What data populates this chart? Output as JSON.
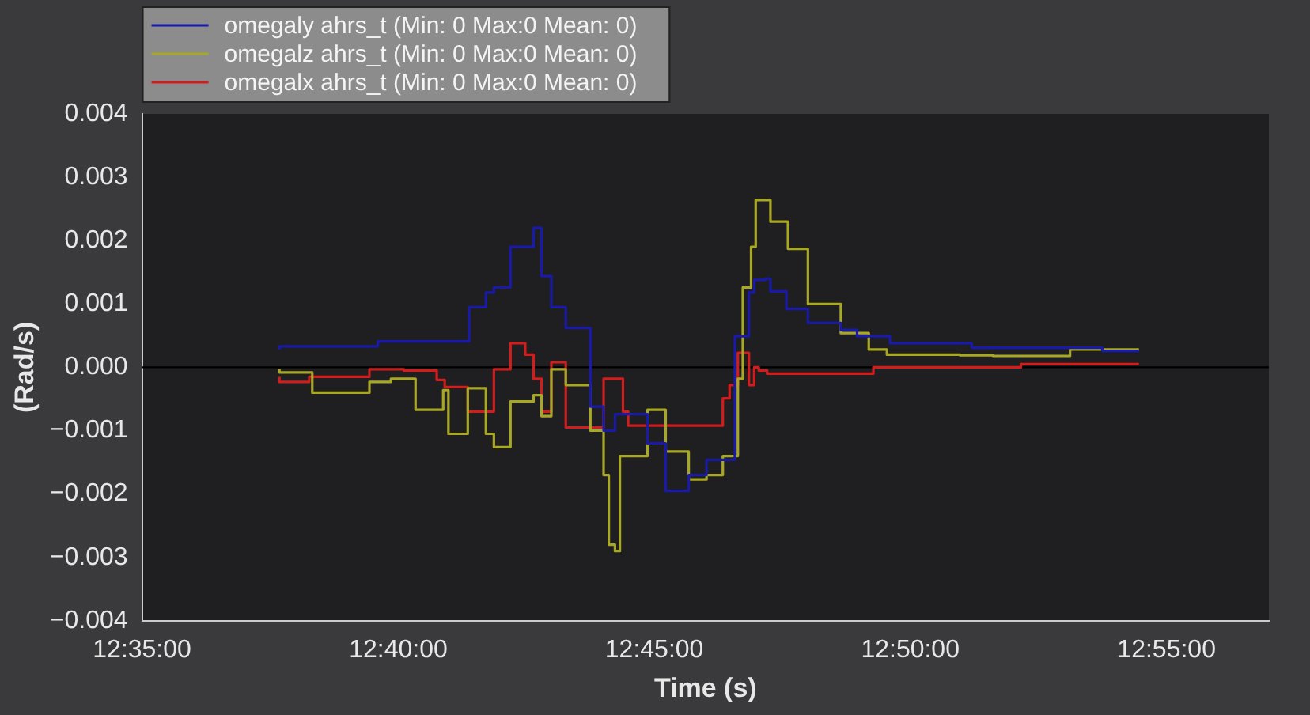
{
  "chart_data": {
    "type": "step",
    "xlabel": "Time (s)",
    "ylabel": "(Rad/s)",
    "xlim": [
      12.5833,
      12.95
    ],
    "xticks": [
      {
        "value": 12.5833,
        "label": "12:35:00"
      },
      {
        "value": 12.6667,
        "label": "12:40:00"
      },
      {
        "value": 12.75,
        "label": "12:45:00"
      },
      {
        "value": 12.8333,
        "label": "12:50:00"
      },
      {
        "value": 12.9167,
        "label": "12:55:00"
      }
    ],
    "ylim": [
      -0.004,
      0.004
    ],
    "yticks": [
      {
        "value": -0.004,
        "label": "−0.004"
      },
      {
        "value": -0.003,
        "label": "−0.003"
      },
      {
        "value": -0.002,
        "label": "−0.002"
      },
      {
        "value": -0.001,
        "label": "−0.001"
      },
      {
        "value": 0,
        "label": "0.000"
      },
      0.001,
      0.002,
      0.003,
      0.004
    ],
    "grid": false,
    "legend": "top left",
    "marker": "none",
    "line_style": "solid",
    "ref_lines": [
      {
        "axis": "y",
        "value": 0,
        "color": "#000000"
      }
    ],
    "series": [
      {
        "name": "omegaly ahrs_t (Min: 0 Max:0 Mean: 0)",
        "color": "#1a1aa8",
        "x": [
          12.628,
          12.66,
          12.6898,
          12.6952,
          12.6978,
          12.7032,
          12.7107,
          12.7133,
          12.7165,
          12.7212,
          12.7292,
          12.7335,
          12.7372,
          12.7478,
          12.7537,
          12.7612,
          12.767,
          12.7762,
          12.7808,
          12.7825,
          12.7862,
          12.7878,
          12.793,
          12.8,
          12.8107,
          12.816,
          12.8267,
          12.8533,
          12.8958,
          12.9077
        ],
        "values": [
          0.00028,
          0.00033,
          0.00041,
          0.00095,
          0.00118,
          0.00126,
          0.0019,
          0.0022,
          0.00144,
          0.00095,
          0.00062,
          -0.00062,
          -0.001,
          -0.00074,
          -0.0012,
          -0.00195,
          -0.0017,
          -0.00146,
          0.00049,
          0.00118,
          0.00138,
          0.0014,
          0.0012,
          0.00092,
          0.0007,
          0.00059,
          0.00049,
          0.00038,
          0.00031,
          0.00026
        ]
      },
      {
        "name": "omegalz ahrs_t (Min: 0 Max:0 Mean: 0)",
        "color": "#a8a826",
        "x": [
          12.628,
          12.6387,
          12.6573,
          12.6643,
          12.6723,
          12.6813,
          12.683,
          12.6893,
          12.6952,
          12.6978,
          12.7032,
          12.7107,
          12.7133,
          12.7165,
          12.7212,
          12.7292,
          12.7335,
          12.7352,
          12.7372,
          12.7388,
          12.7478,
          12.7537,
          12.7612,
          12.767,
          12.7723,
          12.7772,
          12.7788,
          12.7815,
          12.783,
          12.7878,
          12.7935,
          12.8,
          12.8107,
          12.8198,
          12.8257,
          12.8495,
          12.8602,
          12.8853,
          12.9077
        ],
        "values": [
          -3e-05,
          -8e-05,
          -0.0004,
          -0.00023,
          -0.00018,
          -0.00067,
          -0.00036,
          -0.00105,
          -0.00033,
          -0.00105,
          -0.00126,
          -0.00054,
          -0.00044,
          -0.00077,
          -3e-05,
          -0.00028,
          -0.001,
          -0.0017,
          -0.0028,
          -0.0029,
          -0.0014,
          -0.00067,
          -0.00133,
          -0.00177,
          -0.0017,
          -0.0014,
          -0.00018,
          0.00126,
          0.0019,
          0.00264,
          0.0023,
          0.00187,
          0.001,
          0.00054,
          0.00028,
          0.0002,
          0.00019,
          0.00018,
          0.00028
        ]
      },
      {
        "name": "omegalx ahrs_t (Min: 0 Max:0 Mean: 0)",
        "color": "#d01e1e",
        "x": [
          12.628,
          12.6377,
          12.6573,
          12.6685,
          12.6792,
          12.6818,
          12.6893,
          12.6978,
          12.7032,
          12.708,
          12.7107,
          12.7133,
          12.7165,
          12.7212,
          12.7335,
          12.7398,
          12.7415,
          12.7723,
          12.7745,
          12.7772,
          12.7808,
          12.7825,
          12.784,
          12.7867,
          12.8213,
          12.8693,
          12.9077
        ],
        "values": [
          -0.00015,
          -0.00023,
          -0.00015,
          -3e-05,
          -5e-05,
          -0.0002,
          -0.00031,
          -0.0007,
          -3e-05,
          0.00038,
          0.0002,
          -0.00018,
          -0.0007,
          8e-05,
          -0.00095,
          -0.00018,
          -0.0007,
          -0.00092,
          -0.00049,
          -0.00028,
          0.00023,
          -0.00028,
          0,
          -5e-05,
          -0.0001,
          0,
          5e-05
        ]
      }
    ]
  }
}
